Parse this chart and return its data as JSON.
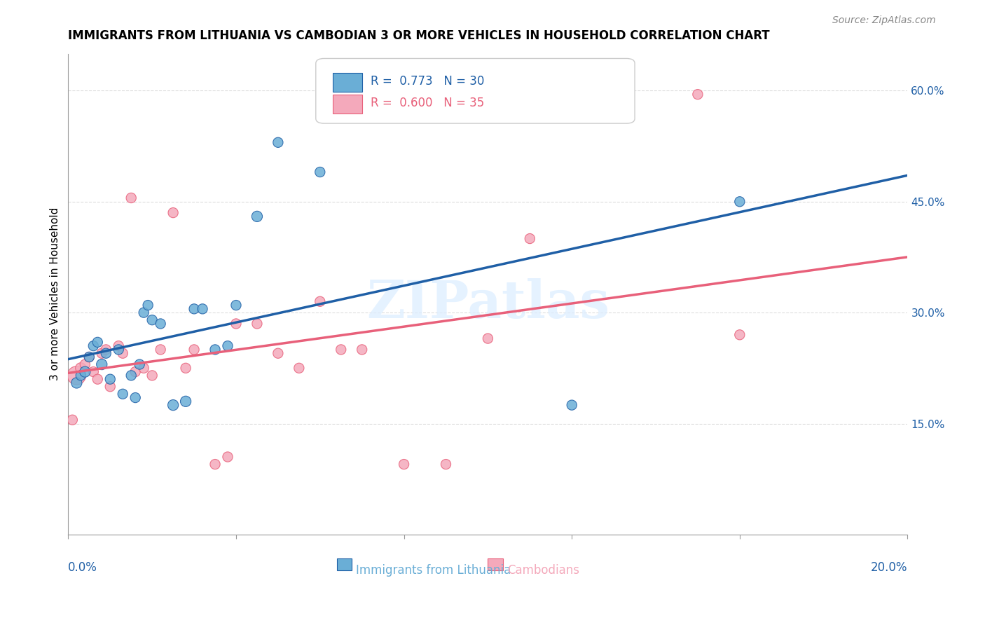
{
  "title": "IMMIGRANTS FROM LITHUANIA VS CAMBODIAN 3 OR MORE VEHICLES IN HOUSEHOLD CORRELATION CHART",
  "source": "Source: ZipAtlas.com",
  "xlabel_blue": "Immigrants from Lithuania",
  "xlabel_pink": "Cambodians",
  "ylabel": "3 or more Vehicles in Household",
  "x_min": 0.0,
  "x_max": 0.2,
  "y_min": 0.0,
  "y_max": 0.65,
  "x_ticks": [
    0.0,
    0.04,
    0.08,
    0.12,
    0.16,
    0.2
  ],
  "y_ticks": [
    0.15,
    0.3,
    0.45,
    0.6
  ],
  "y_tick_labels": [
    "15.0%",
    "30.0%",
    "45.0%",
    "60.0%"
  ],
  "legend_blue_r": "0.773",
  "legend_blue_n": "30",
  "legend_pink_r": "0.600",
  "legend_pink_n": "35",
  "blue_color": "#6aaed6",
  "pink_color": "#f4a9bb",
  "blue_line_color": "#1f5fa6",
  "pink_line_color": "#e8607a",
  "blue_scatter_x": [
    0.002,
    0.003,
    0.004,
    0.005,
    0.006,
    0.007,
    0.008,
    0.009,
    0.01,
    0.012,
    0.013,
    0.015,
    0.016,
    0.017,
    0.018,
    0.019,
    0.02,
    0.022,
    0.025,
    0.028,
    0.03,
    0.032,
    0.035,
    0.038,
    0.04,
    0.045,
    0.05,
    0.06,
    0.12,
    0.16
  ],
  "blue_scatter_y": [
    0.205,
    0.215,
    0.22,
    0.24,
    0.255,
    0.26,
    0.23,
    0.245,
    0.21,
    0.25,
    0.19,
    0.215,
    0.185,
    0.23,
    0.3,
    0.31,
    0.29,
    0.285,
    0.175,
    0.18,
    0.305,
    0.305,
    0.25,
    0.255,
    0.31,
    0.43,
    0.53,
    0.49,
    0.175,
    0.45
  ],
  "blue_scatter_s": [
    40,
    35,
    40,
    35,
    35,
    35,
    40,
    35,
    35,
    35,
    35,
    35,
    35,
    35,
    35,
    35,
    35,
    35,
    40,
    40,
    35,
    35,
    35,
    35,
    35,
    40,
    35,
    35,
    35,
    35
  ],
  "pink_scatter_x": [
    0.001,
    0.002,
    0.003,
    0.004,
    0.005,
    0.006,
    0.007,
    0.008,
    0.009,
    0.01,
    0.012,
    0.013,
    0.015,
    0.016,
    0.018,
    0.02,
    0.022,
    0.025,
    0.028,
    0.03,
    0.035,
    0.038,
    0.04,
    0.045,
    0.05,
    0.055,
    0.06,
    0.065,
    0.07,
    0.08,
    0.09,
    0.1,
    0.11,
    0.15,
    0.16
  ],
  "pink_scatter_y": [
    0.155,
    0.215,
    0.225,
    0.23,
    0.24,
    0.22,
    0.21,
    0.245,
    0.25,
    0.2,
    0.255,
    0.245,
    0.455,
    0.22,
    0.225,
    0.215,
    0.25,
    0.435,
    0.225,
    0.25,
    0.095,
    0.105,
    0.285,
    0.285,
    0.245,
    0.225,
    0.315,
    0.25,
    0.25,
    0.095,
    0.095,
    0.265,
    0.4,
    0.595,
    0.27
  ],
  "pink_scatter_s": [
    35,
    120,
    40,
    35,
    35,
    35,
    35,
    35,
    35,
    35,
    35,
    35,
    35,
    35,
    35,
    35,
    35,
    35,
    35,
    35,
    35,
    35,
    35,
    35,
    35,
    35,
    35,
    35,
    35,
    35,
    35,
    35,
    35,
    35,
    35
  ],
  "watermark": "ZIPatlas",
  "background_color": "#ffffff",
  "grid_color": "#dddddd"
}
